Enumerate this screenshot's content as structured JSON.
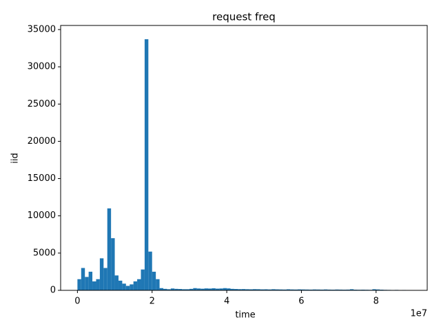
{
  "chart_data": {
    "type": "histogram",
    "title": "request freq",
    "x_label": "time",
    "y_label": "iid",
    "x_offset_label": "1e7",
    "color": "#1f77b4",
    "bins": [
      0,
      1000000,
      2000000,
      3000000,
      4000000,
      5000000,
      6000000,
      7000000,
      8000000,
      9000000,
      10000000,
      11000000,
      12000000,
      13000000,
      14000000,
      15000000,
      16000000,
      17000000,
      18000000,
      19000000,
      20000000,
      21000000,
      22000000,
      23000000,
      24000000,
      25000000,
      26000000,
      27000000,
      28000000,
      29000000,
      30000000,
      31000000,
      32000000,
      33000000,
      34000000,
      35000000,
      36000000,
      37000000,
      38000000,
      39000000,
      40000000,
      41000000,
      42000000,
      43000000,
      44000000,
      45000000,
      46000000,
      47000000,
      48000000,
      49000000,
      50000000,
      51000000,
      52000000,
      53000000,
      54000000,
      55000000,
      56000000,
      57000000,
      58000000,
      59000000,
      60000000,
      61000000,
      62000000,
      63000000,
      64000000,
      65000000,
      66000000,
      67000000,
      68000000,
      69000000,
      70000000,
      71000000,
      72000000,
      73000000,
      74000000,
      75000000,
      76000000,
      77000000,
      78000000,
      79000000,
      80000000,
      81000000,
      82000000,
      83000000,
      84000000,
      85000000,
      86000000,
      87000000,
      88000000,
      89000000,
      90000000
    ],
    "values": [
      1500,
      3000,
      1800,
      2500,
      1200,
      1500,
      4300,
      3000,
      11000,
      7000,
      2000,
      1300,
      900,
      600,
      800,
      1200,
      1500,
      2800,
      33700,
      5200,
      2500,
      1500,
      300,
      200,
      150,
      250,
      200,
      180,
      150,
      150,
      200,
      300,
      250,
      220,
      260,
      240,
      280,
      230,
      250,
      300,
      260,
      200,
      180,
      160,
      170,
      150,
      140,
      160,
      150,
      130,
      140,
      120,
      150,
      130,
      120,
      110,
      140,
      120,
      110,
      130,
      120,
      110,
      100,
      120,
      110,
      100,
      120,
      100,
      90,
      110,
      100,
      90,
      100,
      150,
      90,
      80,
      90,
      80,
      70,
      150,
      120,
      90,
      70,
      60,
      50,
      60,
      40,
      50,
      40,
      30
    ],
    "xlim": [
      -4500000,
      93700000
    ],
    "xticks": [
      {
        "value": 0,
        "label": "0"
      },
      {
        "value": 20000000,
        "label": "2"
      },
      {
        "value": 40000000,
        "label": "4"
      },
      {
        "value": 60000000,
        "label": "6"
      },
      {
        "value": 80000000,
        "label": "8"
      }
    ],
    "ylim": [
      0,
      35550
    ],
    "yticks": [
      0,
      5000,
      10000,
      15000,
      20000,
      25000,
      30000,
      35000
    ]
  }
}
